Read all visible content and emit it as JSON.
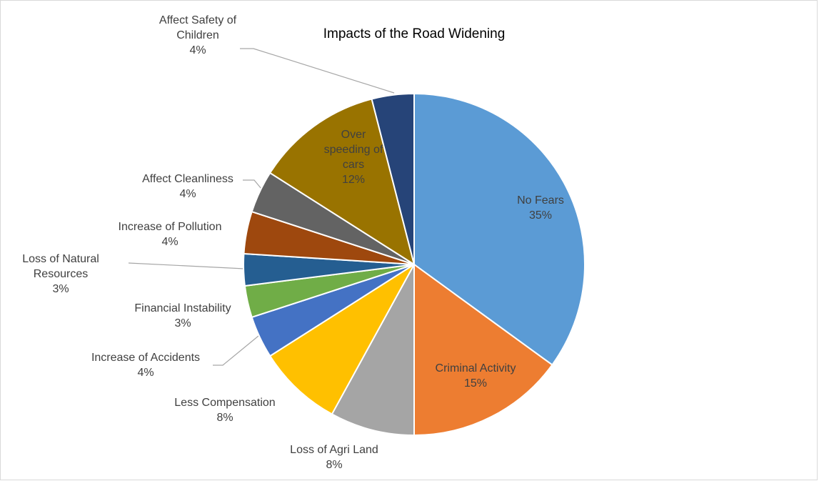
{
  "chart_data": {
    "type": "pie",
    "title": "Impacts of the Road Widening",
    "categories": [
      "No Fears",
      "Criminal Activity",
      "Loss of Agri Land",
      "Less Compensation",
      "Increase of Accidents",
      "Financial Instability",
      "Loss of Natural Resources",
      "Increase of Pollution",
      "Affect Cleanliness",
      "Over speeding of cars",
      "Affect Safety of Children"
    ],
    "values": [
      35,
      15,
      8,
      8,
      4,
      3,
      3,
      4,
      4,
      12,
      4
    ],
    "value_labels": [
      "35%",
      "15%",
      "8%",
      "8%",
      "4%",
      "3%",
      "3%",
      "4%",
      "4%",
      "12%",
      "4%"
    ],
    "colors": [
      "#5b9bd5",
      "#ed7d31",
      "#a5a5a5",
      "#ffc000",
      "#4472c4",
      "#70ad47",
      "#255e91",
      "#9e480e",
      "#636363",
      "#997300",
      "#264478"
    ]
  }
}
